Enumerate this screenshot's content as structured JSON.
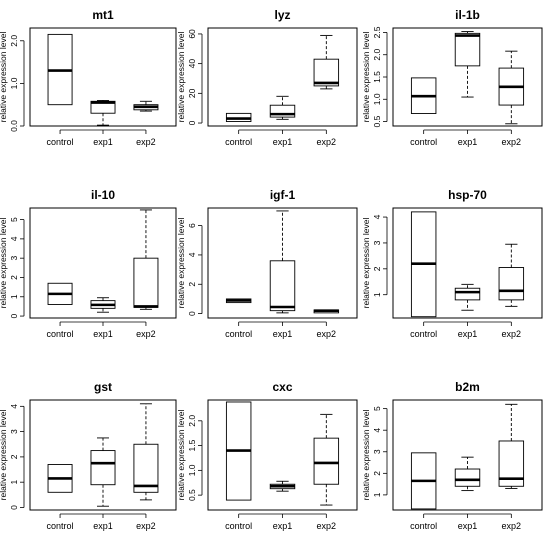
{
  "chart_data": [
    {
      "type": "boxplot",
      "title": "mt1",
      "ylabel": "relative expression level",
      "categories": [
        "control",
        "exp1",
        "exp2"
      ],
      "ylim": [
        0,
        2.3
      ],
      "yticks": [
        0.0,
        1.0,
        2.0
      ],
      "ytick_labels": [
        "0.0",
        "1.0",
        "2.0"
      ],
      "boxes": [
        {
          "min": 0.5,
          "q1": 0.5,
          "median": 1.3,
          "q3": 2.15,
          "max": 2.15
        },
        {
          "min": 0.02,
          "q1": 0.3,
          "median": 0.55,
          "q3": 0.58,
          "max": 0.6
        },
        {
          "min": 0.35,
          "q1": 0.38,
          "median": 0.45,
          "q3": 0.5,
          "max": 0.58
        }
      ]
    },
    {
      "type": "boxplot",
      "title": "lyz",
      "ylabel": "relative expression level",
      "categories": [
        "control",
        "exp1",
        "exp2"
      ],
      "ylim": [
        -2,
        64
      ],
      "yticks": [
        0,
        20,
        40,
        60
      ],
      "ytick_labels": [
        "0",
        "20",
        "40",
        "60"
      ],
      "boxes": [
        {
          "min": 1,
          "q1": 1,
          "median": 3,
          "q3": 6.5,
          "max": 6.5
        },
        {
          "min": 2.5,
          "q1": 4,
          "median": 6,
          "q3": 12,
          "max": 18
        },
        {
          "min": 23,
          "q1": 25,
          "median": 27,
          "q3": 43,
          "max": 59
        }
      ]
    },
    {
      "type": "boxplot",
      "title": "il-1b",
      "ylabel": "relative expression level",
      "categories": [
        "control",
        "exp1",
        "exp2"
      ],
      "ylim": [
        0.4,
        2.6
      ],
      "yticks": [
        0.5,
        1.0,
        1.5,
        2.0,
        2.5
      ],
      "ytick_labels": [
        "0.5",
        "1.0",
        "1.5",
        "2.0",
        "2.5"
      ],
      "boxes": [
        {
          "min": 0.68,
          "q1": 0.68,
          "median": 1.07,
          "q3": 1.48,
          "max": 1.48
        },
        {
          "min": 1.05,
          "q1": 1.75,
          "median": 2.43,
          "q3": 2.48,
          "max": 2.52
        },
        {
          "min": 0.45,
          "q1": 0.87,
          "median": 1.28,
          "q3": 1.7,
          "max": 2.08
        }
      ]
    },
    {
      "type": "boxplot",
      "title": "il-10",
      "ylabel": "relative expression level",
      "categories": [
        "control",
        "exp1",
        "exp2"
      ],
      "ylim": [
        -0.1,
        5.6
      ],
      "yticks": [
        0,
        1,
        2,
        3,
        4,
        5
      ],
      "ytick_labels": [
        "0",
        "1",
        "2",
        "3",
        "4",
        "5"
      ],
      "boxes": [
        {
          "min": 0.6,
          "q1": 0.6,
          "median": 1.15,
          "q3": 1.7,
          "max": 1.7
        },
        {
          "min": 0.2,
          "q1": 0.4,
          "median": 0.58,
          "q3": 0.8,
          "max": 0.95
        },
        {
          "min": 0.35,
          "q1": 0.45,
          "median": 0.5,
          "q3": 3.0,
          "max": 5.5
        }
      ]
    },
    {
      "type": "boxplot",
      "title": "igf-1",
      "ylabel": "relative expression level",
      "categories": [
        "control",
        "exp1",
        "exp2"
      ],
      "ylim": [
        -0.3,
        7.2
      ],
      "yticks": [
        0,
        2,
        4,
        6
      ],
      "ytick_labels": [
        "0",
        "2",
        "4",
        "6"
      ],
      "boxes": [
        {
          "min": 0.75,
          "q1": 0.75,
          "median": 0.9,
          "q3": 1.0,
          "max": 1.0
        },
        {
          "min": 0.05,
          "q1": 0.2,
          "median": 0.45,
          "q3": 3.6,
          "max": 7.0
        },
        {
          "min": 0.05,
          "q1": 0.05,
          "median": 0.2,
          "q3": 0.25,
          "max": 0.25
        }
      ]
    },
    {
      "type": "boxplot",
      "title": "hsp-70",
      "ylabel": "relative expression level",
      "categories": [
        "control",
        "exp1",
        "exp2"
      ],
      "ylim": [
        0.1,
        4.35
      ],
      "yticks": [
        1,
        2,
        3,
        4
      ],
      "ytick_labels": [
        "1",
        "2",
        "3",
        "4"
      ],
      "boxes": [
        {
          "min": 0.15,
          "q1": 0.15,
          "median": 2.2,
          "q3": 4.2,
          "max": 4.2
        },
        {
          "min": 0.4,
          "q1": 0.8,
          "median": 1.1,
          "q3": 1.25,
          "max": 1.4
        },
        {
          "min": 0.55,
          "q1": 0.8,
          "median": 1.15,
          "q3": 2.05,
          "max": 2.95
        }
      ]
    },
    {
      "type": "boxplot",
      "title": "gst",
      "ylabel": "relative expression level",
      "categories": [
        "control",
        "exp1",
        "exp2"
      ],
      "ylim": [
        -0.1,
        4.25
      ],
      "yticks": [
        0,
        1,
        2,
        3,
        4
      ],
      "ytick_labels": [
        "0",
        "1",
        "2",
        "3",
        "4"
      ],
      "boxes": [
        {
          "min": 0.6,
          "q1": 0.6,
          "median": 1.15,
          "q3": 1.7,
          "max": 1.7
        },
        {
          "min": 0.05,
          "q1": 0.9,
          "median": 1.75,
          "q3": 2.25,
          "max": 2.75
        },
        {
          "min": 0.3,
          "q1": 0.6,
          "median": 0.85,
          "q3": 2.5,
          "max": 4.1
        }
      ]
    },
    {
      "type": "boxplot",
      "title": "cxc",
      "ylabel": "relative expression level",
      "categories": [
        "control",
        "exp1",
        "exp2"
      ],
      "ylim": [
        0.2,
        2.42
      ],
      "yticks": [
        0.5,
        1.0,
        1.5,
        2.0
      ],
      "ytick_labels": [
        "0.5",
        "1.0",
        "1.5",
        "2.0"
      ],
      "boxes": [
        {
          "min": 0.4,
          "q1": 0.4,
          "median": 1.4,
          "q3": 2.38,
          "max": 2.38
        },
        {
          "min": 0.58,
          "q1": 0.63,
          "median": 0.68,
          "q3": 0.72,
          "max": 0.78
        },
        {
          "min": 0.3,
          "q1": 0.72,
          "median": 1.15,
          "q3": 1.65,
          "max": 2.13
        }
      ]
    },
    {
      "type": "boxplot",
      "title": "b2m",
      "ylabel": "relative expression level",
      "categories": [
        "control",
        "exp1",
        "exp2"
      ],
      "ylim": [
        0.3,
        5.4
      ],
      "yticks": [
        1,
        2,
        3,
        4,
        5
      ],
      "ytick_labels": [
        "1",
        "2",
        "3",
        "4",
        "5"
      ],
      "boxes": [
        {
          "min": 0.35,
          "q1": 0.35,
          "median": 1.65,
          "q3": 2.95,
          "max": 2.95
        },
        {
          "min": 1.2,
          "q1": 1.4,
          "median": 1.7,
          "q3": 2.2,
          "max": 2.75
        },
        {
          "min": 1.3,
          "q1": 1.4,
          "median": 1.75,
          "q3": 3.5,
          "max": 5.2
        }
      ]
    }
  ]
}
